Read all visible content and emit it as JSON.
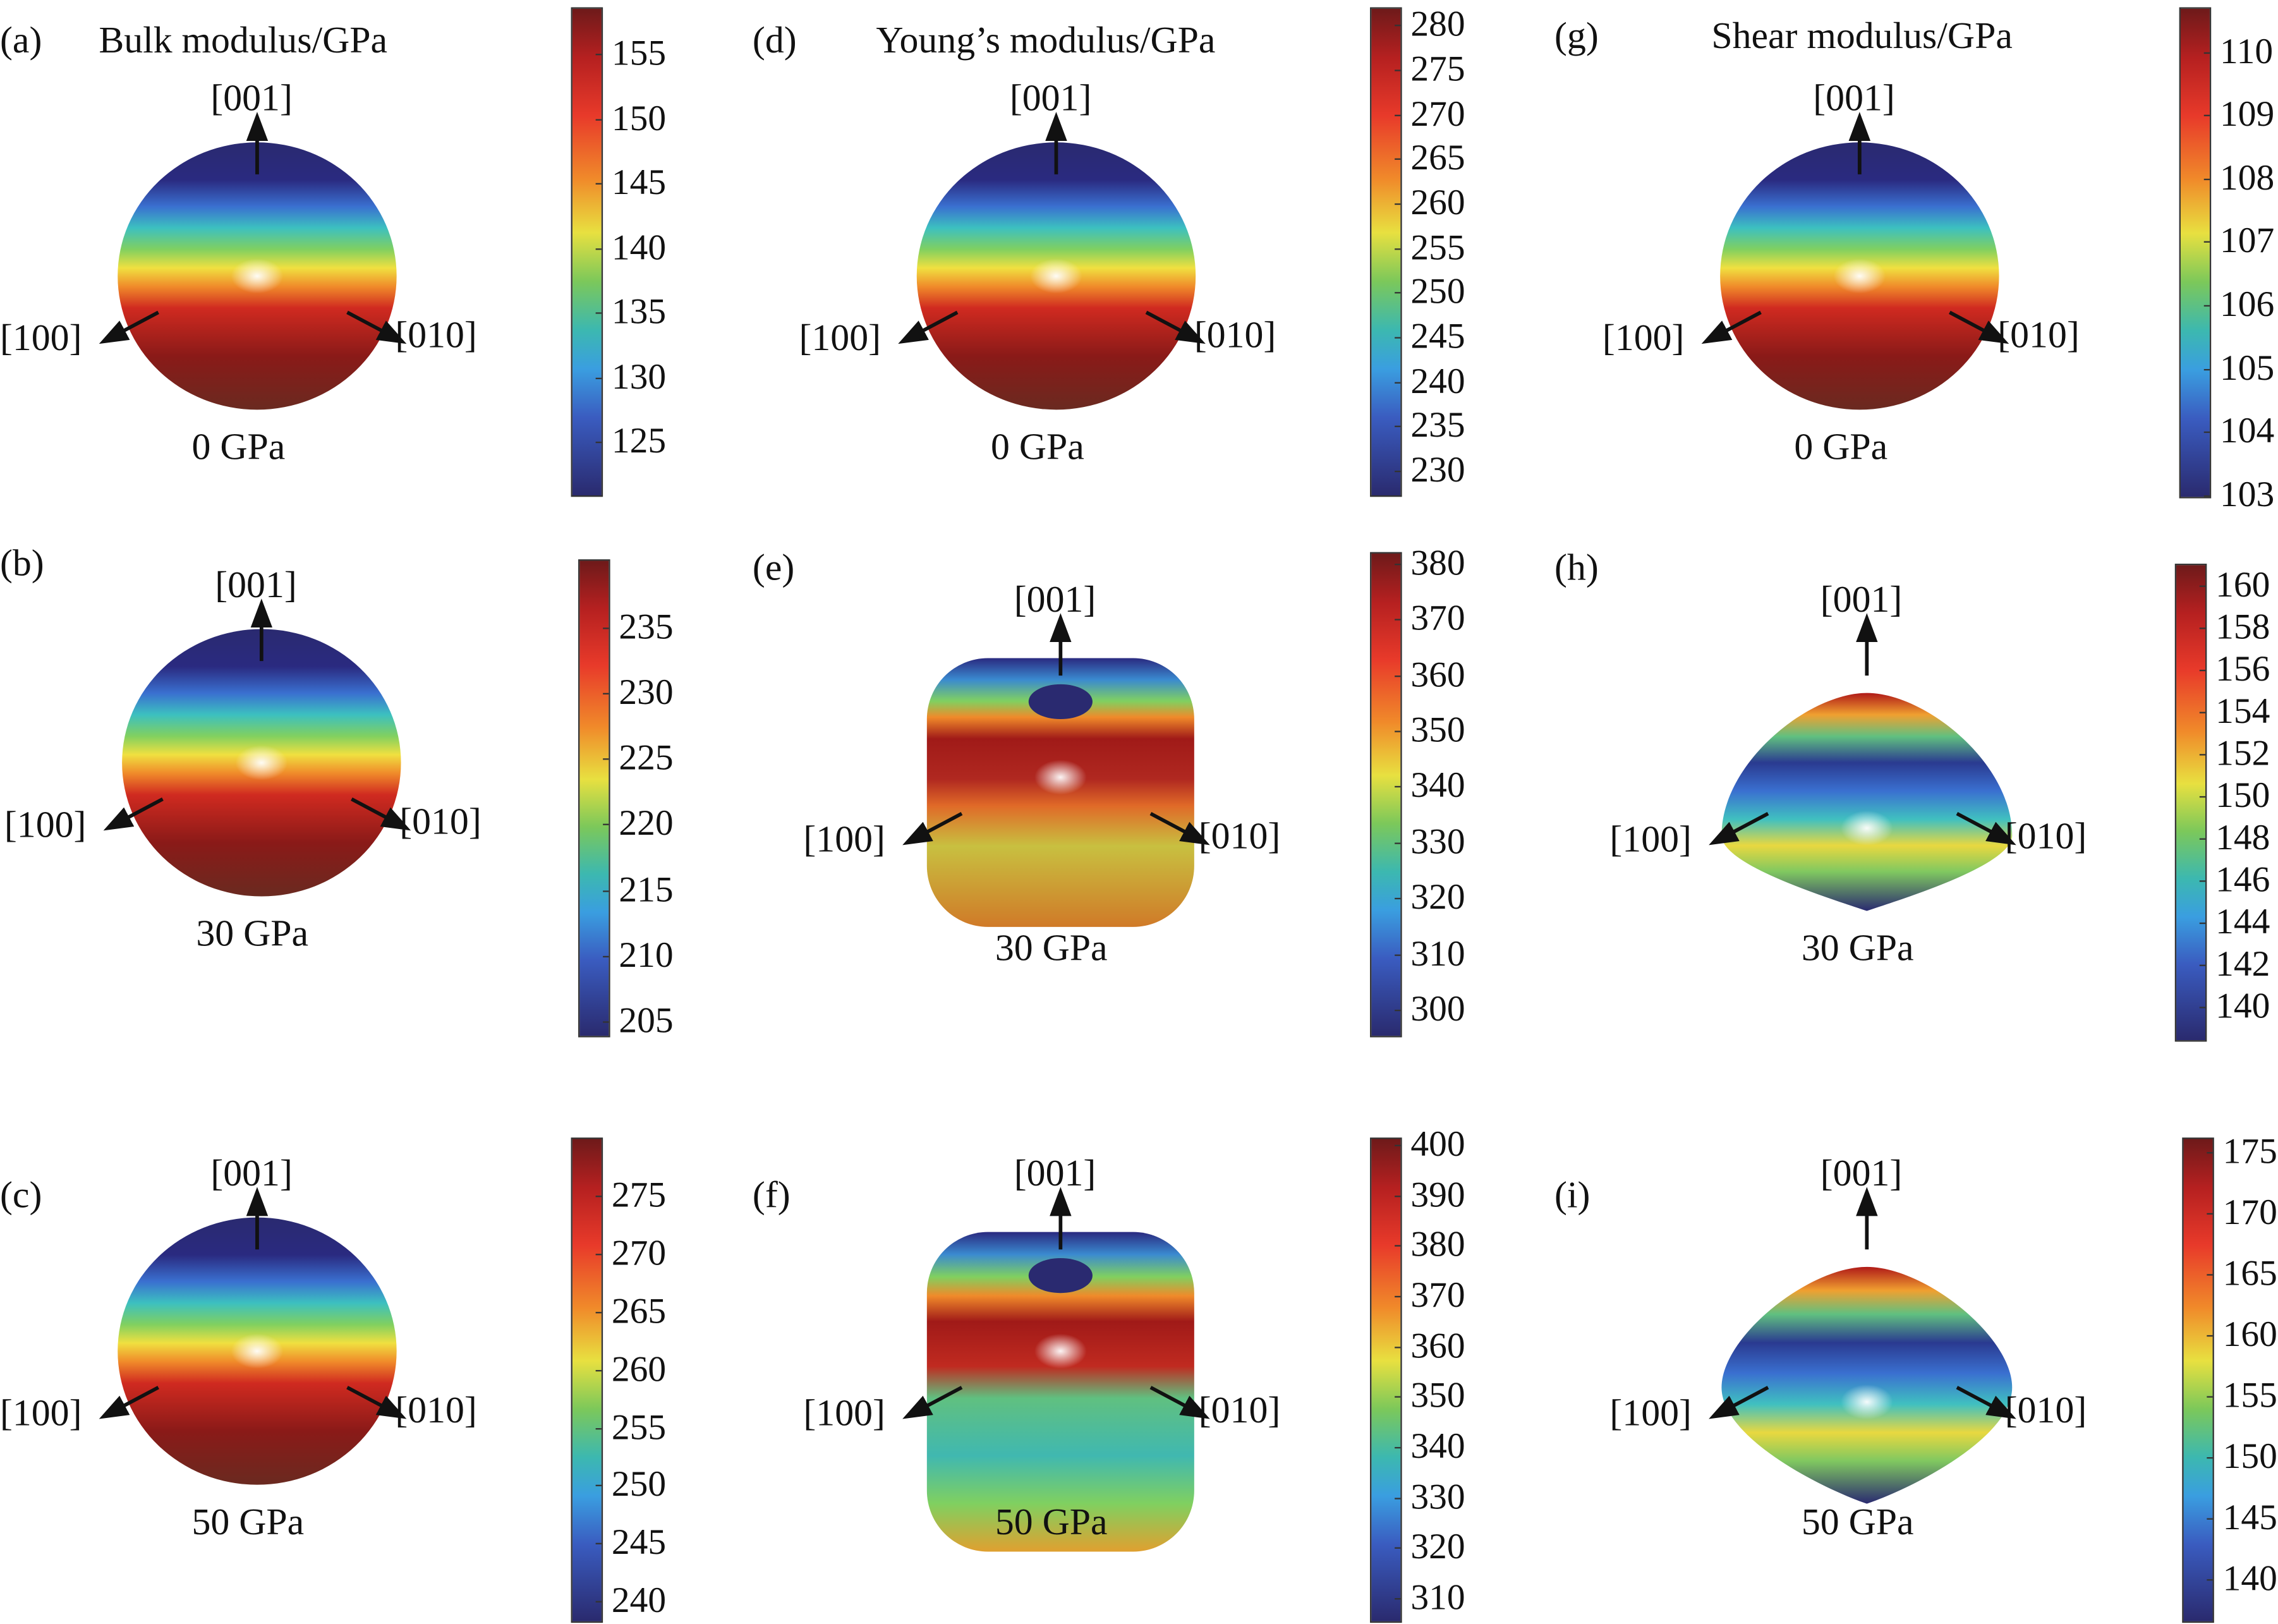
{
  "chart_data": [
    {
      "id": "a",
      "type": "surface3d",
      "panel_label": "(a)",
      "title": "Bulk modulus/GPa",
      "pressure": "0 GPa",
      "shape": "sphere",
      "colorbar": {
        "range": [
          121,
          158.6
        ],
        "ticks": [
          "125",
          "130",
          "135",
          "140",
          "145",
          "150",
          "155"
        ]
      }
    },
    {
      "id": "b",
      "type": "surface3d",
      "panel_label": "(b)",
      "pressure": "30 GPa",
      "shape": "sphere",
      "colorbar": {
        "range": [
          204,
          240.2
        ],
        "ticks": [
          "205",
          "210",
          "215",
          "220",
          "225",
          "230",
          "235"
        ]
      }
    },
    {
      "id": "c",
      "type": "surface3d",
      "panel_label": "(c)",
      "pressure": "50 GPa",
      "shape": "sphere",
      "colorbar": {
        "range": [
          238.4,
          280
        ],
        "ticks": [
          "240",
          "245",
          "250",
          "255",
          "260",
          "265",
          "270",
          "275"
        ]
      }
    },
    {
      "id": "d",
      "type": "surface3d",
      "panel_label": "(d)",
      "title": "Young’s modulus/GPa",
      "pressure": "0 GPa",
      "shape": "sphere",
      "colorbar": {
        "range": [
          227.4,
          282
        ],
        "ticks": [
          "230",
          "235",
          "240",
          "245",
          "250",
          "255",
          "260",
          "265",
          "270",
          "275",
          "280"
        ]
      }
    },
    {
      "id": "e",
      "type": "surface3d",
      "panel_label": "(e)",
      "pressure": "30 GPa",
      "shape": "cylinder",
      "colorbar": {
        "range": [
          295.6,
          382
        ],
        "ticks": [
          "300",
          "310",
          "320",
          "330",
          "340",
          "350",
          "360",
          "370",
          "380"
        ]
      }
    },
    {
      "id": "f",
      "type": "surface3d",
      "panel_label": "(f)",
      "pressure": "50 GPa",
      "shape": "cylinder",
      "colorbar": {
        "range": [
          305.7,
          401.4
        ],
        "ticks": [
          "310",
          "320",
          "330",
          "340",
          "350",
          "360",
          "370",
          "380",
          "390",
          "400"
        ]
      }
    },
    {
      "id": "g",
      "type": "surface3d",
      "panel_label": "(g)",
      "title": "Shear modulus/GPa",
      "pressure": "0 GPa",
      "shape": "sphere",
      "colorbar": {
        "range": [
          103,
          110.7
        ],
        "ticks": [
          "103",
          "104",
          "105",
          "106",
          "107",
          "108",
          "109",
          "110"
        ]
      }
    },
    {
      "id": "h",
      "type": "surface3d",
      "panel_label": "(h)",
      "pressure": "30 GPa",
      "shape": "diamond",
      "colorbar": {
        "range": [
          138.5,
          161
        ],
        "ticks": [
          "140",
          "142",
          "144",
          "146",
          "148",
          "150",
          "152",
          "154",
          "156",
          "158",
          "160"
        ]
      }
    },
    {
      "id": "i",
      "type": "surface3d",
      "panel_label": "(i)",
      "pressure": "50 GPa",
      "shape": "diamond",
      "colorbar": {
        "range": [
          136.7,
          176.2
        ],
        "ticks": [
          "140",
          "145",
          "150",
          "155",
          "160",
          "165",
          "170",
          "175"
        ]
      }
    }
  ],
  "axes": {
    "z": "[001]",
    "x": "[100]",
    "y": "[010]"
  }
}
